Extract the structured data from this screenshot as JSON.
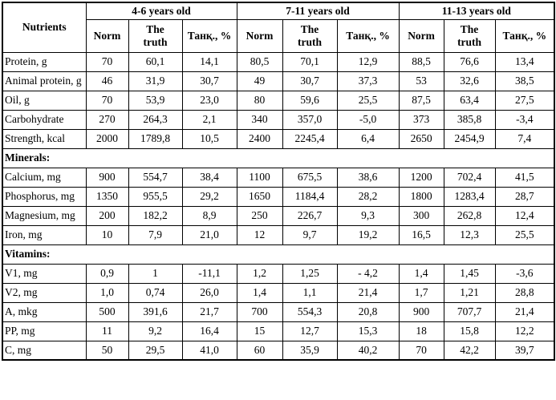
{
  "table": {
    "corner_header": "Nutrients",
    "age_groups": [
      "4-6 years old",
      "7-11 years old",
      "11-13 years old"
    ],
    "sub_headers": [
      "Norm",
      "The truth",
      "Танқ., %"
    ],
    "sections": [
      {
        "title": "",
        "rows": [
          {
            "label": "Protein, g",
            "values": [
              "70",
              "60,1",
              "14,1",
              "80,5",
              "70,1",
              "12,9",
              "88,5",
              "76,6",
              "13,4"
            ]
          },
          {
            "label": "Animal protein, g",
            "values": [
              "46",
              "31,9",
              "30,7",
              "49",
              "30,7",
              "37,3",
              "53",
              "32,6",
              "38,5"
            ]
          },
          {
            "label": "Oil, g",
            "values": [
              "70",
              "53,9",
              "23,0",
              "80",
              "59,6",
              "25,5",
              "87,5",
              "63,4",
              "27,5"
            ]
          },
          {
            "label": "Carbohydrate",
            "values": [
              "270",
              "264,3",
              "2,1",
              "340",
              "357,0",
              "-5,0",
              "373",
              "385,8",
              "-3,4"
            ]
          },
          {
            "label": "Strength, kcal",
            "values": [
              "2000",
              "1789,8",
              "10,5",
              "2400",
              "2245,4",
              "6,4",
              "2650",
              "2454,9",
              "7,4"
            ]
          }
        ]
      },
      {
        "title": "Minerals:",
        "rows": [
          {
            "label": "Calcium, mg",
            "values": [
              "900",
              "554,7",
              "38,4",
              "1100",
              "675,5",
              "38,6",
              "1200",
              "702,4",
              "41,5"
            ]
          },
          {
            "label": "Phosphorus, mg",
            "values": [
              "1350",
              "955,5",
              "29,2",
              "1650",
              "1184,4",
              "28,2",
              "1800",
              "1283,4",
              "28,7"
            ]
          },
          {
            "label": "Magnesium, mg",
            "values": [
              "200",
              "182,2",
              "8,9",
              "250",
              "226,7",
              "9,3",
              "300",
              "262,8",
              "12,4"
            ]
          },
          {
            "label": "Iron, mg",
            "values": [
              "10",
              "7,9",
              "21,0",
              "12",
              "9,7",
              "19,2",
              "16,5",
              "12,3",
              "25,5"
            ]
          }
        ]
      },
      {
        "title": "Vitamins:",
        "rows": [
          {
            "label": "V1, mg",
            "values": [
              "0,9",
              "1",
              "-11,1",
              "1,2",
              "1,25",
              "- 4,2",
              "1,4",
              "1,45",
              "-3,6"
            ]
          },
          {
            "label": "V2, mg",
            "values": [
              "1,0",
              "0,74",
              "26,0",
              "1,4",
              "1,1",
              "21,4",
              "1,7",
              "1,21",
              "28,8"
            ]
          },
          {
            "label": "A, mkg",
            "values": [
              "500",
              "391,6",
              "21,7",
              "700",
              "554,3",
              "20,8",
              "900",
              "707,7",
              "21,4"
            ]
          },
          {
            "label": "PP, mg",
            "values": [
              "11",
              "9,2",
              "16,4",
              "15",
              "12,7",
              "15,3",
              "18",
              "15,8",
              "12,2"
            ]
          },
          {
            "label": "C, mg",
            "values": [
              "50",
              "29,5",
              "41,0",
              "60",
              "35,9",
              "40,2",
              "70",
              "42,2",
              "39,7"
            ]
          }
        ]
      }
    ]
  }
}
